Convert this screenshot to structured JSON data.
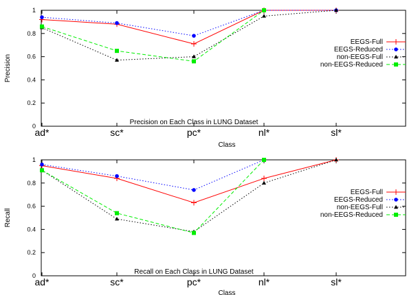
{
  "chart_data": [
    {
      "type": "line",
      "title": "Precision on Each Class in LUNG Dataset",
      "xlabel": "Class",
      "ylabel": "Precision",
      "categories": [
        "ad*",
        "sc*",
        "pc*",
        "nl*",
        "sl*"
      ],
      "ylim": [
        0,
        1
      ],
      "yticks": [
        "0",
        "0.2",
        "0.4",
        "0.6",
        "0.8",
        "1"
      ],
      "grid": false,
      "legend": "right",
      "series": [
        {
          "name": "EEGS-Full",
          "color": "#ff0000",
          "dash": "solid",
          "marker": "plus",
          "values": [
            0.92,
            0.88,
            0.71,
            1.0,
            1.0
          ]
        },
        {
          "name": "EEGS-Reduced",
          "color": "#0000ff",
          "dash": "dotted",
          "marker": "circle",
          "values": [
            0.94,
            0.89,
            0.78,
            1.0,
            1.0
          ]
        },
        {
          "name": "non-EEGS-Full",
          "color": "#000000",
          "dash": "dotted",
          "marker": "triangle",
          "values": [
            0.85,
            0.57,
            0.6,
            0.95,
            1.0
          ]
        },
        {
          "name": "non-EEGS-Reduced",
          "color": "#00ee00",
          "dash": "dashed",
          "marker": "square",
          "values": [
            0.86,
            0.65,
            0.56,
            1.0,
            null
          ]
        }
      ]
    },
    {
      "type": "line",
      "title": "Recall on Each Class in LUNG Dataset",
      "xlabel": "Class",
      "ylabel": "Recall",
      "categories": [
        "ad*",
        "sc*",
        "pc*",
        "nl*",
        "sl*"
      ],
      "ylim": [
        0,
        1
      ],
      "yticks": [
        "0",
        "0.2",
        "0.4",
        "0.6",
        "0.8",
        "1"
      ],
      "grid": false,
      "legend": "right",
      "series": [
        {
          "name": "EEGS-Full",
          "color": "#ff0000",
          "dash": "solid",
          "marker": "plus",
          "values": [
            0.95,
            0.84,
            0.63,
            0.84,
            1.0
          ]
        },
        {
          "name": "EEGS-Reduced",
          "color": "#0000ff",
          "dash": "dotted",
          "marker": "circle",
          "values": [
            0.96,
            0.86,
            0.74,
            1.0,
            null
          ]
        },
        {
          "name": "non-EEGS-Full",
          "color": "#000000",
          "dash": "dotted",
          "marker": "triangle",
          "values": [
            0.91,
            0.49,
            0.38,
            0.8,
            1.0
          ]
        },
        {
          "name": "non-EEGS-Reduced",
          "color": "#00ee00",
          "dash": "dashed",
          "marker": "square",
          "values": [
            0.91,
            0.54,
            0.37,
            1.0,
            null
          ]
        }
      ]
    }
  ]
}
